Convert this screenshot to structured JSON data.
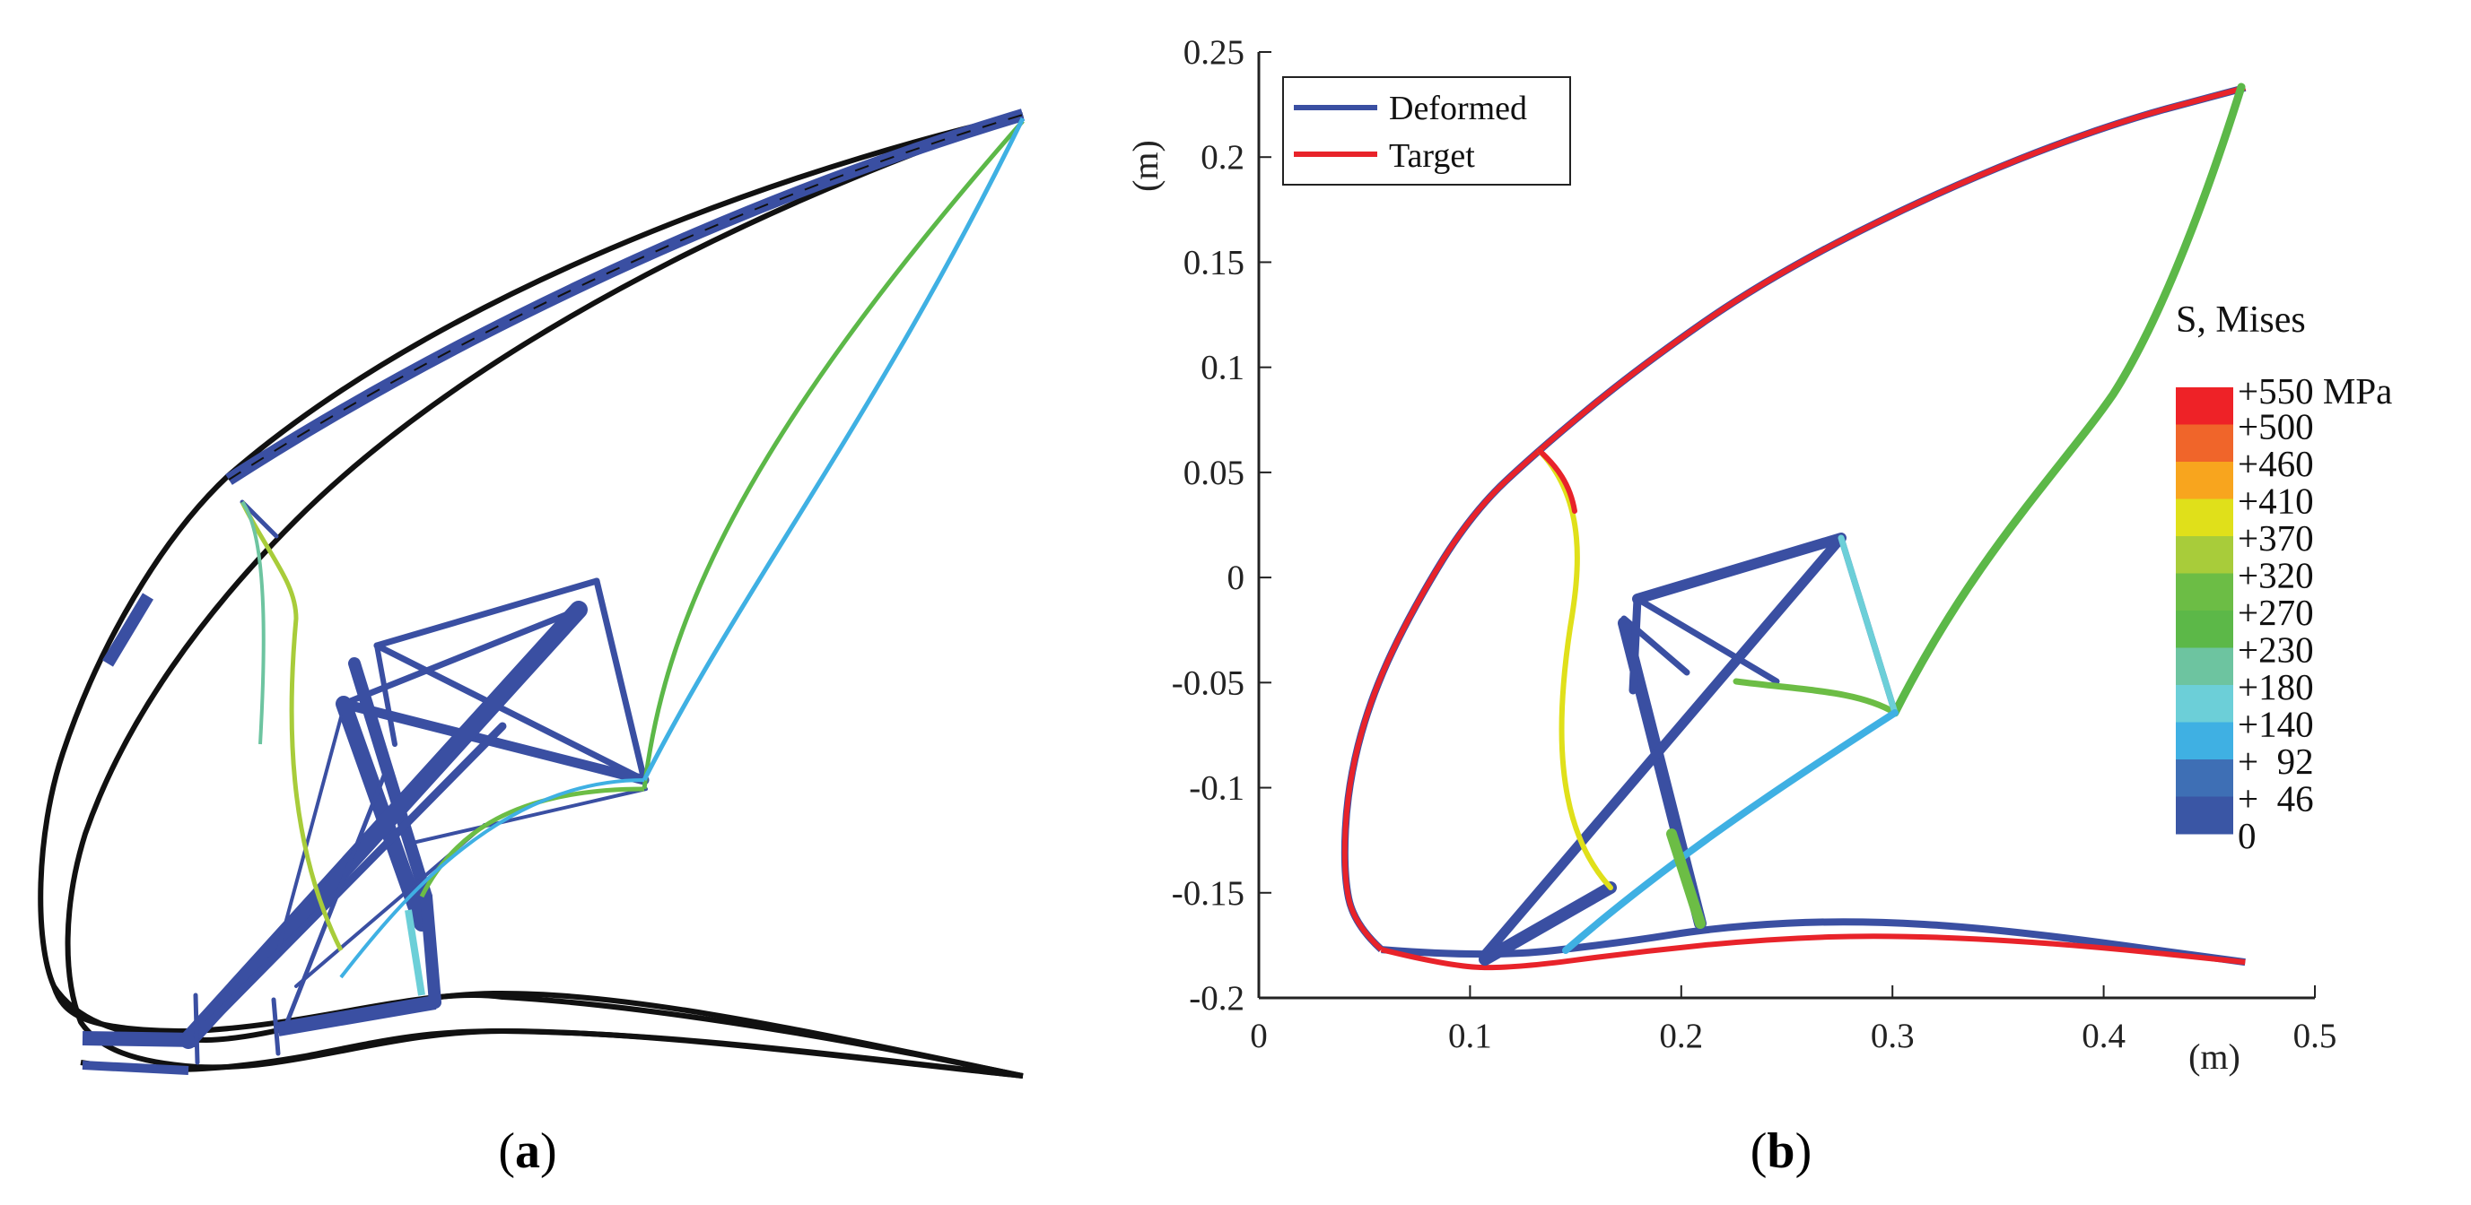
{
  "panel_labels": {
    "a": "a",
    "b": "b",
    "open": "(",
    "close": ")"
  },
  "colors": {
    "deformed": "#3a4fa2",
    "target": "#e8232a",
    "axis": "#222222",
    "panel_a_outer": "#111111"
  },
  "chart_data": {
    "type": "line",
    "xlabel": "(m)",
    "ylabel": "(m)",
    "xlim": [
      0,
      0.5
    ],
    "ylim": [
      -0.2,
      0.25
    ],
    "xticks": [
      "0",
      "0.1",
      "0.2",
      "0.3",
      "0.4",
      "0.5"
    ],
    "yticks": [
      "-0.2",
      "-0.15",
      "-0.1",
      "-0.05",
      "0",
      "0.05",
      "0.1",
      "0.15",
      "0.2",
      "0.25"
    ],
    "legend": {
      "placement": "top-left",
      "entries": [
        {
          "name": "Deformed",
          "color": "#3a4fa2"
        },
        {
          "name": "Target",
          "color": "#e8232a"
        }
      ]
    },
    "series": [
      {
        "name": "Deformed",
        "points": [
          [
            0.058,
            -0.177
          ],
          [
            0.045,
            -0.165
          ],
          [
            0.04,
            -0.14
          ],
          [
            0.042,
            -0.1
          ],
          [
            0.052,
            -0.06
          ],
          [
            0.07,
            -0.02
          ],
          [
            0.1,
            0.03
          ],
          [
            0.134,
            0.062
          ],
          [
            0.18,
            0.1
          ],
          [
            0.24,
            0.142
          ],
          [
            0.32,
            0.183
          ],
          [
            0.4,
            0.215
          ],
          [
            0.467,
            0.233
          ]
        ]
      },
      {
        "name": "Deformed",
        "points": [
          [
            0.058,
            -0.177
          ],
          [
            0.108,
            -0.181
          ],
          [
            0.17,
            -0.174
          ],
          [
            0.22,
            -0.166
          ],
          [
            0.28,
            -0.163
          ],
          [
            0.35,
            -0.167
          ],
          [
            0.467,
            -0.183
          ]
        ]
      },
      {
        "name": "Target",
        "points": [
          [
            0.058,
            -0.177
          ],
          [
            0.045,
            -0.165
          ],
          [
            0.04,
            -0.14
          ],
          [
            0.042,
            -0.1
          ],
          [
            0.052,
            -0.06
          ],
          [
            0.07,
            -0.02
          ],
          [
            0.1,
            0.03
          ],
          [
            0.134,
            0.062
          ],
          [
            0.18,
            0.1
          ],
          [
            0.24,
            0.142
          ],
          [
            0.32,
            0.183
          ],
          [
            0.4,
            0.215
          ],
          [
            0.467,
            0.233
          ]
        ]
      },
      {
        "name": "Target",
        "points": [
          [
            0.058,
            -0.177
          ],
          [
            0.09,
            -0.185
          ],
          [
            0.12,
            -0.186
          ],
          [
            0.18,
            -0.178
          ],
          [
            0.24,
            -0.172
          ],
          [
            0.3,
            -0.17
          ],
          [
            0.38,
            -0.174
          ],
          [
            0.467,
            -0.183
          ]
        ]
      }
    ],
    "colorbar": {
      "title": "S, Mises",
      "top_label": "+550 MPa",
      "levels": [
        "+500",
        "+460",
        "+410",
        "+370",
        "+320",
        "+270",
        "+230",
        "+180",
        "+140",
        "+  92",
        "+  46",
        "0"
      ],
      "colors": [
        "#ee2227",
        "#f0652a",
        "#f8a51e",
        "#e0e01a",
        "#a8cc3a",
        "#6cbd45",
        "#5cb848",
        "#6dc4a0",
        "#6ccfd8",
        "#3fb0e3",
        "#3e6fb5",
        "#3a56a5"
      ]
    }
  }
}
